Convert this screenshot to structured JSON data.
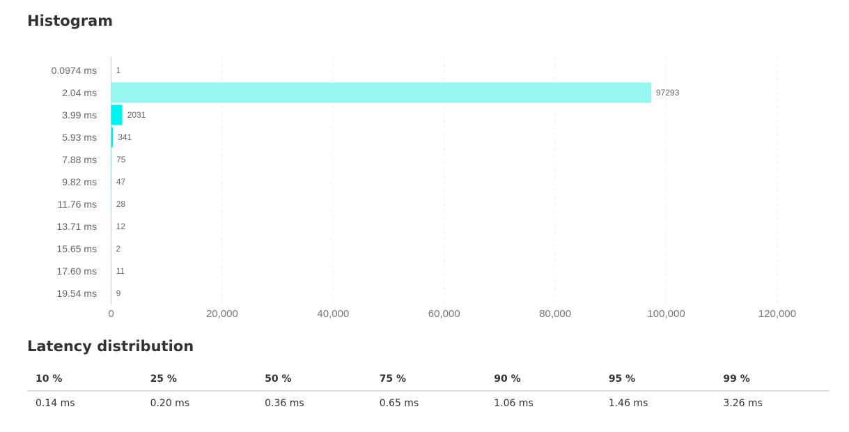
{
  "histogram": {
    "title": "Histogram"
  },
  "chart_data": {
    "type": "bar",
    "orientation": "horizontal",
    "categories": [
      "0.0974 ms",
      "2.04 ms",
      "3.99 ms",
      "5.93 ms",
      "7.88 ms",
      "9.82 ms",
      "11.76 ms",
      "13.71 ms",
      "15.65 ms",
      "17.60 ms",
      "19.54 ms"
    ],
    "values": [
      1,
      97293,
      2031,
      341,
      75,
      47,
      28,
      12,
      2,
      11,
      9
    ],
    "data_labels": [
      "1",
      "97293",
      "2031",
      "341",
      "75",
      "47",
      "28",
      "12",
      "2",
      "11",
      "9"
    ],
    "xlim": [
      0,
      120000
    ],
    "x_ticks": [
      0,
      20000,
      40000,
      60000,
      80000,
      100000,
      120000
    ],
    "x_tick_labels": [
      "0",
      "20,000",
      "40,000",
      "60,000",
      "80,000",
      "100,000",
      "120,000"
    ],
    "grid": "vertical dashed",
    "colors": {
      "max_bar": "#96f7f1",
      "bar": "#00f2f1",
      "tick_text": "#777777",
      "category_text": "#666666",
      "axis": "#cccccc",
      "grid": "#eeeeee"
    }
  },
  "latency": {
    "title": "Latency distribution",
    "headers": [
      "10 %",
      "25 %",
      "50 %",
      "75 %",
      "90 %",
      "95 %",
      "99 %"
    ],
    "values": [
      "0.14 ms",
      "0.20 ms",
      "0.36 ms",
      "0.65 ms",
      "1.06 ms",
      "1.46 ms",
      "3.26 ms"
    ]
  }
}
